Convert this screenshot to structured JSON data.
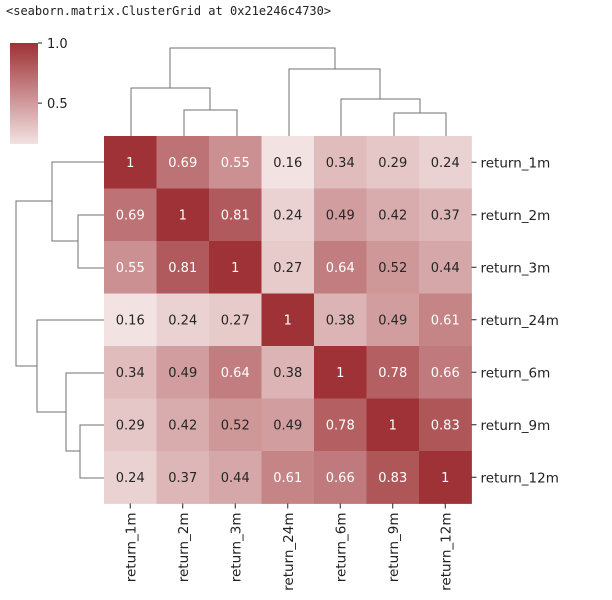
{
  "output_header": "<seaborn.matrix.ClusterGrid at 0x21e246c4730>",
  "colors": {
    "low": "#f2e2e2",
    "high": "#9e3236",
    "text_dark": "#262626",
    "text_light": "#ffffff",
    "dendro": "#707070"
  },
  "chart_data": {
    "type": "heatmap",
    "title": "",
    "rows": [
      "return_1m",
      "return_2m",
      "return_3m",
      "return_24m",
      "return_6m",
      "return_9m",
      "return_12m"
    ],
    "columns": [
      "return_1m",
      "return_2m",
      "return_3m",
      "return_24m",
      "return_6m",
      "return_9m",
      "return_12m"
    ],
    "values": [
      [
        1,
        0.69,
        0.55,
        0.16,
        0.34,
        0.29,
        0.24
      ],
      [
        0.69,
        1,
        0.81,
        0.24,
        0.49,
        0.42,
        0.37
      ],
      [
        0.55,
        0.81,
        1,
        0.27,
        0.64,
        0.52,
        0.44
      ],
      [
        0.16,
        0.24,
        0.27,
        1,
        0.38,
        0.49,
        0.61
      ],
      [
        0.34,
        0.49,
        0.64,
        0.38,
        1,
        0.78,
        0.66
      ],
      [
        0.29,
        0.42,
        0.52,
        0.49,
        0.78,
        1,
        0.83
      ],
      [
        0.24,
        0.37,
        0.44,
        0.61,
        0.66,
        0.83,
        1
      ]
    ],
    "labels": [
      [
        "1",
        "0.69",
        "0.55",
        "0.16",
        "0.34",
        "0.29",
        "0.24"
      ],
      [
        "0.69",
        "1",
        "0.81",
        "0.24",
        "0.49",
        "0.42",
        "0.37"
      ],
      [
        "0.55",
        "0.81",
        "1",
        "0.27",
        "0.64",
        "0.52",
        "0.44"
      ],
      [
        "0.16",
        "0.24",
        "0.27",
        "1",
        "0.38",
        "0.49",
        "0.61"
      ],
      [
        "0.34",
        "0.49",
        "0.64",
        "0.38",
        "1",
        "0.78",
        "0.66"
      ],
      [
        "0.29",
        "0.42",
        "0.52",
        "0.49",
        "0.78",
        "1",
        "0.83"
      ],
      [
        "0.24",
        "0.37",
        "0.44",
        "0.61",
        "0.66",
        "0.83",
        "1"
      ]
    ],
    "vmin": 0.16,
    "vmax": 1.0,
    "colorbar": {
      "ticks": [
        1.0,
        0.5
      ],
      "tick_labels": [
        "1.0",
        "0.5"
      ]
    }
  }
}
